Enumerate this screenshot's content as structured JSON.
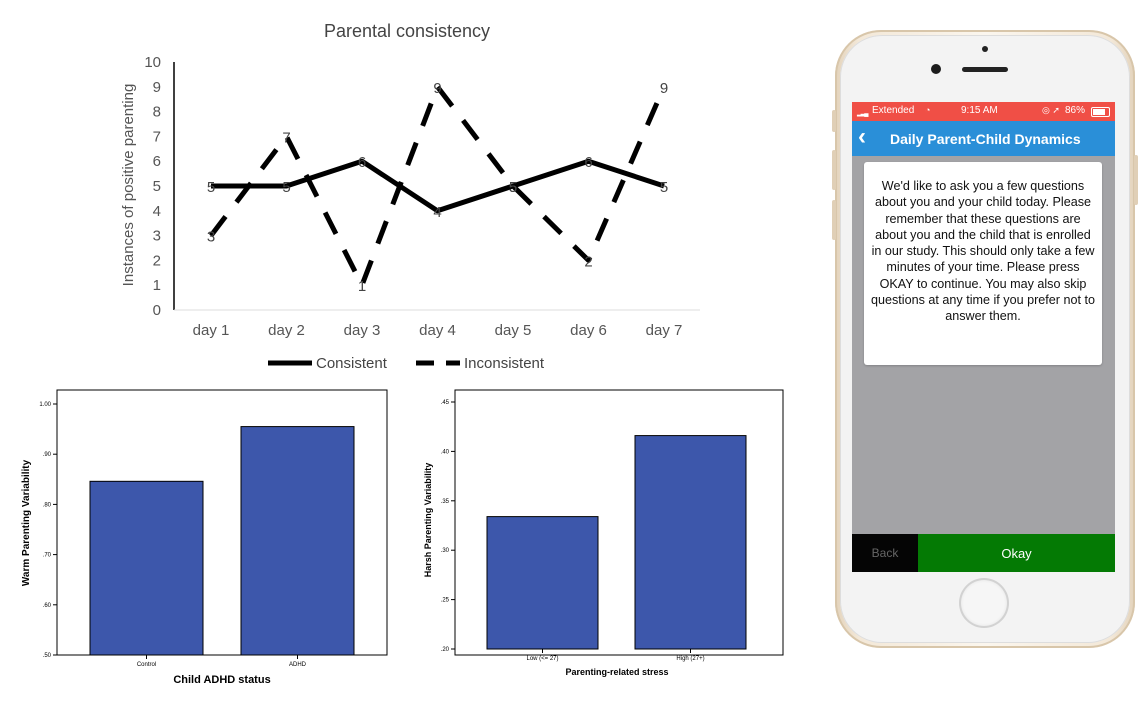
{
  "chart_data": [
    {
      "type": "line",
      "title": "Parental consistency",
      "xlabel": "",
      "ylabel": "Instances of positive parenting",
      "categories": [
        "day 1",
        "day 2",
        "day 3",
        "day 4",
        "day 5",
        "day 6",
        "day 7"
      ],
      "ylim": [
        0,
        10
      ],
      "yticks": [
        "0",
        "1",
        "2",
        "3",
        "4",
        "5",
        "6",
        "7",
        "8",
        "9",
        "10"
      ],
      "grid": false,
      "legend": "bottom",
      "series": [
        {
          "name": "Consistent",
          "values": [
            5,
            5,
            6,
            4,
            5,
            6,
            5
          ],
          "style": "solid",
          "color": "#000000"
        },
        {
          "name": "Inconsistent",
          "values": [
            3,
            7,
            1,
            9,
            5,
            2,
            9
          ],
          "style": "dashed",
          "color": "#000000"
        }
      ]
    },
    {
      "type": "bar",
      "title": "",
      "xlabel": "Child ADHD status",
      "ylabel": "Warm Parenting Variability",
      "categories": [
        "Control",
        "ADHD"
      ],
      "values": [
        0.846,
        0.955
      ],
      "ylim": [
        0.5,
        1.0
      ],
      "yticks": [
        ".50",
        ".60",
        ".70",
        ".80",
        ".90",
        "1.00"
      ],
      "bar_color": "#3d57ab",
      "grid": false
    },
    {
      "type": "bar",
      "title": "",
      "xlabel": "Parenting-related stress",
      "ylabel": "Harsh Parenting Variability",
      "categories": [
        "Low (<= 27)",
        "High (27+)"
      ],
      "values": [
        0.334,
        0.416
      ],
      "ylim": [
        0.2,
        0.45
      ],
      "yticks": [
        ".20",
        ".25",
        ".30",
        ".35",
        ".40",
        ".45"
      ],
      "bar_color": "#3d57ab",
      "grid": false
    }
  ],
  "phone": {
    "status_bar": {
      "carrier": "Extended",
      "time": "9:15 AM",
      "battery": "86%"
    },
    "nav": {
      "title": "Daily Parent-Child Dynamics",
      "back_icon": "chevron-left-icon"
    },
    "message": "We'd like to ask you a few questions about you and your child today. Please remember that these questions are about you and the child that is enrolled in our study. This should only take a few minutes of your time. Please press OKAY to continue. You may also skip questions at any time if you prefer not to answer them.",
    "buttons": {
      "back": "Back",
      "okay": "Okay"
    },
    "colors": {
      "status_bar": "#f04f46",
      "nav_bar": "#2a8fd8",
      "okay_button": "#047a04",
      "back_button": "#050505",
      "screen_bg": "#a3a3a6"
    }
  }
}
